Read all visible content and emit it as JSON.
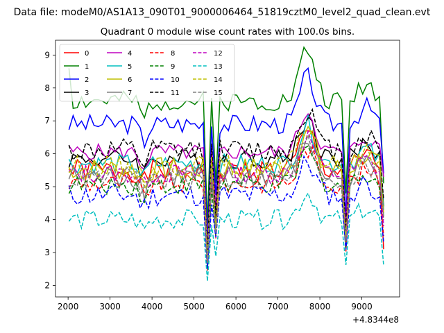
{
  "figure": {
    "suptitle": "Data file: modeM0/AS1A13_090T01_9000006464_51819cztM0_level2_quad_clean.evt",
    "offset_label": "+4.8344e8"
  },
  "chart_data": {
    "type": "line",
    "title": "Quadrant 0 module wise count rates with 100.0s bins.",
    "xlabel": "",
    "ylabel": "",
    "xlim": [
      1700,
      9900
    ],
    "ylim": [
      1.65,
      9.45
    ],
    "x_ticks": [
      2000,
      3000,
      4000,
      5000,
      6000,
      7000,
      8000,
      9000
    ],
    "x_tick_labels": [
      "2000",
      "3000",
      "4000",
      "5000",
      "6000",
      "7000",
      "8000",
      "9000"
    ],
    "y_ticks": [
      2,
      3,
      4,
      5,
      6,
      7,
      8,
      9
    ],
    "y_tick_labels": [
      "2",
      "3",
      "4",
      "5",
      "6",
      "7",
      "8",
      "9"
    ],
    "legend_location": "upper-left",
    "legend_columns": 4,
    "x_start": 2020,
    "x_step": 100,
    "n_points": 76,
    "series": [
      {
        "name": "0",
        "color": "#ff0000",
        "dash": "solid",
        "base": 5.5,
        "dev": 0.35,
        "seed": 1,
        "end": 3.1
      },
      {
        "name": "1",
        "color": "#008000",
        "dash": "solid",
        "base": 7.6,
        "dev": 0.3,
        "seed": 2,
        "end": 5.1,
        "start": 8.6
      },
      {
        "name": "2",
        "color": "#0000ff",
        "dash": "solid",
        "base": 6.9,
        "dev": 0.3,
        "seed": 3,
        "end": 5.4
      },
      {
        "name": "3",
        "color": "#000000",
        "dash": "solid",
        "base": 5.85,
        "dev": 0.3,
        "seed": 4,
        "end": 4.4
      },
      {
        "name": "4",
        "color": "#bf00bf",
        "dash": "solid",
        "base": 6.05,
        "dev": 0.25,
        "seed": 5,
        "end": 5.3
      },
      {
        "name": "5",
        "color": "#00bfbf",
        "dash": "solid",
        "base": 5.7,
        "dev": 0.3,
        "seed": 6,
        "end": 4.3
      },
      {
        "name": "6",
        "color": "#bfbf00",
        "dash": "solid",
        "base": 5.55,
        "dev": 0.35,
        "seed": 7,
        "end": 4.1
      },
      {
        "name": "7",
        "color": "#808080",
        "dash": "solid",
        "base": 5.3,
        "dev": 0.35,
        "seed": 8,
        "end": 4.3
      },
      {
        "name": "8",
        "color": "#ff0000",
        "dash": "dashed",
        "base": 5.1,
        "dev": 0.3,
        "seed": 9,
        "end": 3.5
      },
      {
        "name": "9",
        "color": "#008000",
        "dash": "dashed",
        "base": 5.05,
        "dev": 0.3,
        "seed": 10,
        "end": 4.0
      },
      {
        "name": "10",
        "color": "#0000ff",
        "dash": "dashed",
        "base": 4.75,
        "dev": 0.35,
        "seed": 11,
        "end": 3.3
      },
      {
        "name": "11",
        "color": "#000000",
        "dash": "dashed",
        "base": 6.1,
        "dev": 0.35,
        "seed": 12,
        "end": 4.6
      },
      {
        "name": "12",
        "color": "#bf00bf",
        "dash": "dashed",
        "base": 5.4,
        "dev": 0.3,
        "seed": 13,
        "end": 3.8
      },
      {
        "name": "13",
        "color": "#00bfbf",
        "dash": "dashed",
        "base": 4.0,
        "dev": 0.3,
        "seed": 14,
        "end": 2.6
      },
      {
        "name": "14",
        "color": "#bfbf00",
        "dash": "dashed",
        "base": 5.6,
        "dev": 0.35,
        "seed": 15,
        "end": 4.2
      },
      {
        "name": "15",
        "color": "#808080",
        "dash": "dashed",
        "base": 5.25,
        "dev": 0.35,
        "seed": 16,
        "end": 4.1
      }
    ],
    "features": {
      "dips": [
        {
          "x": 5320,
          "factor": 0.5
        },
        {
          "x": 5520,
          "factor": 0.7
        },
        {
          "x": 8620,
          "factor": 0.62
        }
      ],
      "bumps": [
        {
          "x": 7700,
          "amount": 1.25,
          "width": 260
        },
        {
          "x": 9100,
          "amount": 0.45,
          "width": 250
        },
        {
          "x": 3800,
          "amount": -0.45,
          "width": 120
        }
      ]
    }
  }
}
